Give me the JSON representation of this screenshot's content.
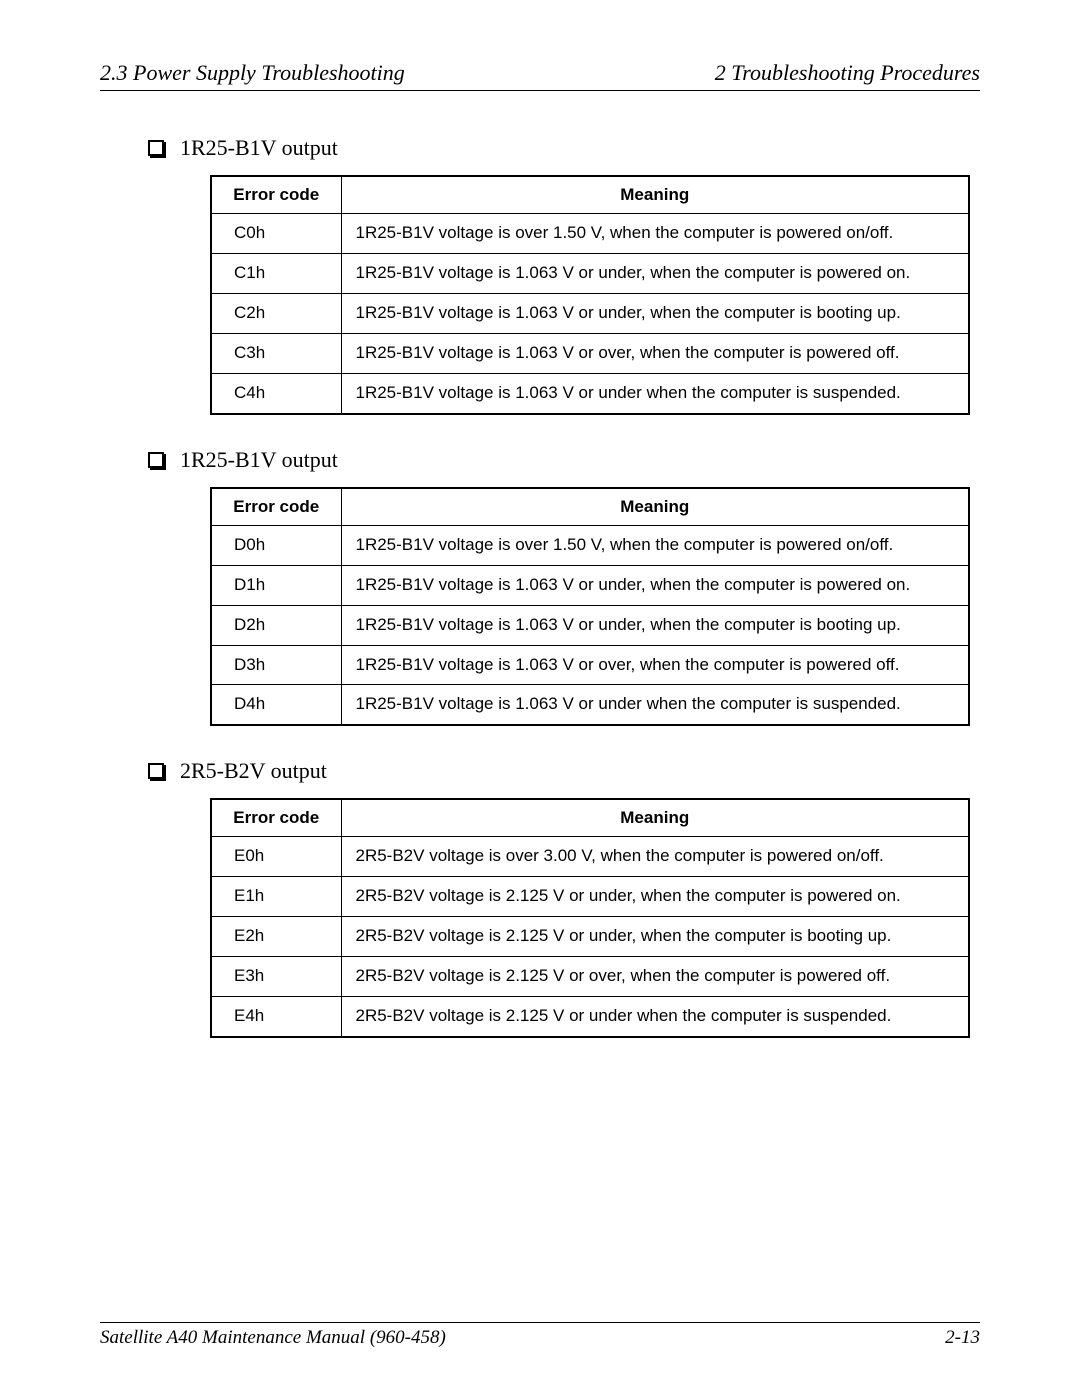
{
  "header": {
    "left": "2.3  Power Supply Troubleshooting",
    "right": "2  Troubleshooting Procedures"
  },
  "footer": {
    "left": "Satellite A40 Maintenance Manual (960-458)",
    "right": "2-13"
  },
  "tables": {
    "headers": {
      "col1": "Error code",
      "col2": "Meaning"
    }
  },
  "sections": [
    {
      "title": "1R25-B1V output",
      "rows": [
        {
          "code": "C0h",
          "meaning": "1R25-B1V voltage is over 1.50 V, when the computer is powered on/off."
        },
        {
          "code": "C1h",
          "meaning": "1R25-B1V voltage is 1.063 V or under, when the computer is powered on."
        },
        {
          "code": "C2h",
          "meaning": "1R25-B1V voltage is 1.063 V or under, when the computer is booting up."
        },
        {
          "code": "C3h",
          "meaning": "1R25-B1V voltage is 1.063 V or over, when the computer is powered off."
        },
        {
          "code": "C4h",
          "meaning": "1R25-B1V voltage is 1.063 V or under when the computer is suspended."
        }
      ]
    },
    {
      "title": "1R25-B1V output",
      "rows": [
        {
          "code": "D0h",
          "meaning": "1R25-B1V voltage is over 1.50 V, when the computer is powered on/off."
        },
        {
          "code": "D1h",
          "meaning": "1R25-B1V voltage is 1.063 V or under, when the computer is powered on."
        },
        {
          "code": "D2h",
          "meaning": "1R25-B1V voltage is 1.063 V or under, when the computer is booting up."
        },
        {
          "code": "D3h",
          "meaning": "1R25-B1V voltage is 1.063 V or over, when the computer is powered off."
        },
        {
          "code": "D4h",
          "meaning": "1R25-B1V voltage is 1.063 V or under when the computer is suspended."
        }
      ]
    },
    {
      "title": "2R5-B2V output",
      "rows": [
        {
          "code": "E0h",
          "meaning": "2R5-B2V voltage is over 3.00 V, when the computer is powered on/off."
        },
        {
          "code": "E1h",
          "meaning": "2R5-B2V voltage is 2.125 V or under, when the computer is powered on."
        },
        {
          "code": "E2h",
          "meaning": "2R5-B2V voltage is 2.125 V or under, when the computer is booting up."
        },
        {
          "code": "E3h",
          "meaning": "2R5-B2V voltage is 2.125 V or over, when the computer is powered off."
        },
        {
          "code": "E4h",
          "meaning": "2R5-B2V voltage is 2.125 V or under when the computer is suspended."
        }
      ]
    }
  ]
}
